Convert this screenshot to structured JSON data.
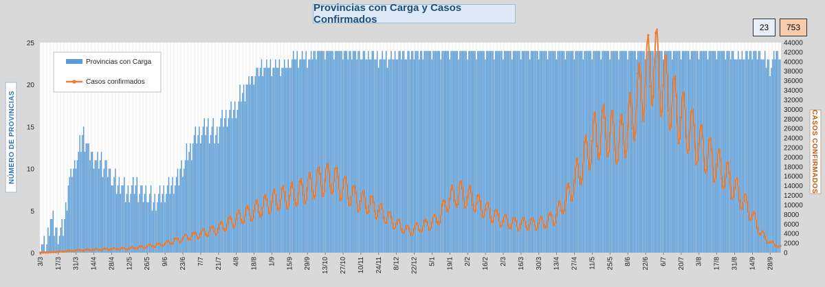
{
  "chart_data": {
    "type": "bar+line",
    "title": "Provincias con Carga y Casos Confirmados",
    "stat_boxes": {
      "provincias": "23",
      "casos": "753"
    },
    "left_axis": {
      "label": "NÚMERO DE PROVINCIAS",
      "range": [
        0,
        25
      ],
      "ticks": [
        "0",
        "5",
        "10",
        "15",
        "20",
        "25"
      ]
    },
    "right_axis": {
      "label": "CASOS CONFIRMADOS",
      "range": [
        0,
        44000
      ],
      "ticks": [
        "0",
        "2000",
        "4000",
        "6000",
        "8000",
        "10000",
        "12000",
        "14000",
        "16000",
        "18000",
        "20000",
        "22000",
        "24000",
        "26000",
        "28000",
        "30000",
        "32000",
        "34000",
        "36000",
        "38000",
        "40000",
        "42000",
        "44000"
      ]
    },
    "x_tick_labels": [
      "3/3",
      "17/3",
      "31/3",
      "14/4",
      "28/4",
      "12/5",
      "26/5",
      "9/6",
      "23/6",
      "7/7",
      "21/7",
      "4/8",
      "18/8",
      "1/9",
      "15/9",
      "29/9",
      "13/10",
      "27/10",
      "10/11",
      "24/11",
      "8/12",
      "22/12",
      "5/1",
      "19/1",
      "2/2",
      "16/2",
      "2/3",
      "16/3",
      "30/3",
      "13/4",
      "27/4",
      "11/5",
      "25/5",
      "8/6",
      "22/6",
      "6/7",
      "20/7",
      "3/8",
      "17/8",
      "31/8",
      "14/9",
      "28/9"
    ],
    "num_days": 583,
    "series": [
      {
        "name": "Provincias con Carga",
        "kind": "bar",
        "color": "#5b9bd5",
        "axis": "left",
        "keyframes": [
          [
            0,
            1
          ],
          [
            5,
            1
          ],
          [
            8,
            4
          ],
          [
            14,
            2
          ],
          [
            18,
            3
          ],
          [
            22,
            8
          ],
          [
            26,
            10
          ],
          [
            30,
            12
          ],
          [
            34,
            14
          ],
          [
            38,
            12
          ],
          [
            42,
            11
          ],
          [
            48,
            11
          ],
          [
            52,
            10
          ],
          [
            56,
            9
          ],
          [
            60,
            8
          ],
          [
            64,
            8
          ],
          [
            68,
            7
          ],
          [
            72,
            8
          ],
          [
            76,
            8
          ],
          [
            80,
            7
          ],
          [
            84,
            7
          ],
          [
            90,
            6
          ],
          [
            96,
            7
          ],
          [
            102,
            8
          ],
          [
            108,
            9
          ],
          [
            114,
            11
          ],
          [
            120,
            13
          ],
          [
            126,
            14
          ],
          [
            132,
            15
          ],
          [
            138,
            14
          ],
          [
            144,
            16
          ],
          [
            150,
            17
          ],
          [
            156,
            18
          ],
          [
            162,
            20
          ],
          [
            168,
            21
          ],
          [
            174,
            22
          ],
          [
            180,
            22
          ],
          [
            186,
            22
          ],
          [
            192,
            22
          ],
          [
            200,
            23
          ],
          [
            210,
            23
          ],
          [
            220,
            24
          ],
          [
            240,
            24
          ],
          [
            270,
            23
          ],
          [
            300,
            24
          ],
          [
            330,
            24
          ],
          [
            380,
            24
          ],
          [
            420,
            24
          ],
          [
            470,
            24
          ],
          [
            520,
            24
          ],
          [
            540,
            24
          ],
          [
            550,
            23
          ],
          [
            560,
            24
          ],
          [
            570,
            23
          ],
          [
            575,
            22
          ],
          [
            580,
            24
          ],
          [
            582,
            23
          ]
        ]
      },
      {
        "name": "Casos confirmados",
        "kind": "line",
        "color": "#ed7d31",
        "axis": "right",
        "keyframes": [
          [
            0,
            0
          ],
          [
            10,
            100
          ],
          [
            20,
            300
          ],
          [
            30,
            500
          ],
          [
            40,
            600
          ],
          [
            50,
            700
          ],
          [
            60,
            800
          ],
          [
            70,
            900
          ],
          [
            80,
            1200
          ],
          [
            90,
            1500
          ],
          [
            100,
            2000
          ],
          [
            110,
            2800
          ],
          [
            120,
            3500
          ],
          [
            130,
            4200
          ],
          [
            140,
            5000
          ],
          [
            150,
            6500
          ],
          [
            160,
            7800
          ],
          [
            170,
            9000
          ],
          [
            180,
            10500
          ],
          [
            190,
            11500
          ],
          [
            200,
            12200
          ],
          [
            210,
            13500
          ],
          [
            220,
            15000
          ],
          [
            230,
            15500
          ],
          [
            240,
            13000
          ],
          [
            250,
            11000
          ],
          [
            260,
            10000
          ],
          [
            270,
            8000
          ],
          [
            280,
            6000
          ],
          [
            290,
            4500
          ],
          [
            300,
            5500
          ],
          [
            310,
            6500
          ],
          [
            315,
            8000
          ],
          [
            320,
            11000
          ],
          [
            330,
            12500
          ],
          [
            338,
            11500
          ],
          [
            345,
            10000
          ],
          [
            355,
            8000
          ],
          [
            365,
            6500
          ],
          [
            375,
            6000
          ],
          [
            385,
            6000
          ],
          [
            395,
            6200
          ],
          [
            405,
            7500
          ],
          [
            415,
            12000
          ],
          [
            425,
            18000
          ],
          [
            435,
            24000
          ],
          [
            445,
            26000
          ],
          [
            455,
            23000
          ],
          [
            465,
            28000
          ],
          [
            475,
            36000
          ],
          [
            483,
            40000
          ],
          [
            490,
            35000
          ],
          [
            500,
            30000
          ],
          [
            510,
            26000
          ],
          [
            520,
            22000
          ],
          [
            530,
            19000
          ],
          [
            540,
            16000
          ],
          [
            550,
            12000
          ],
          [
            560,
            8000
          ],
          [
            565,
            5000
          ],
          [
            570,
            3000
          ],
          [
            575,
            2000
          ],
          [
            580,
            1500
          ],
          [
            582,
            1200
          ]
        ]
      }
    ],
    "legend": {
      "placement": "top-left"
    },
    "grid": "vertical"
  }
}
